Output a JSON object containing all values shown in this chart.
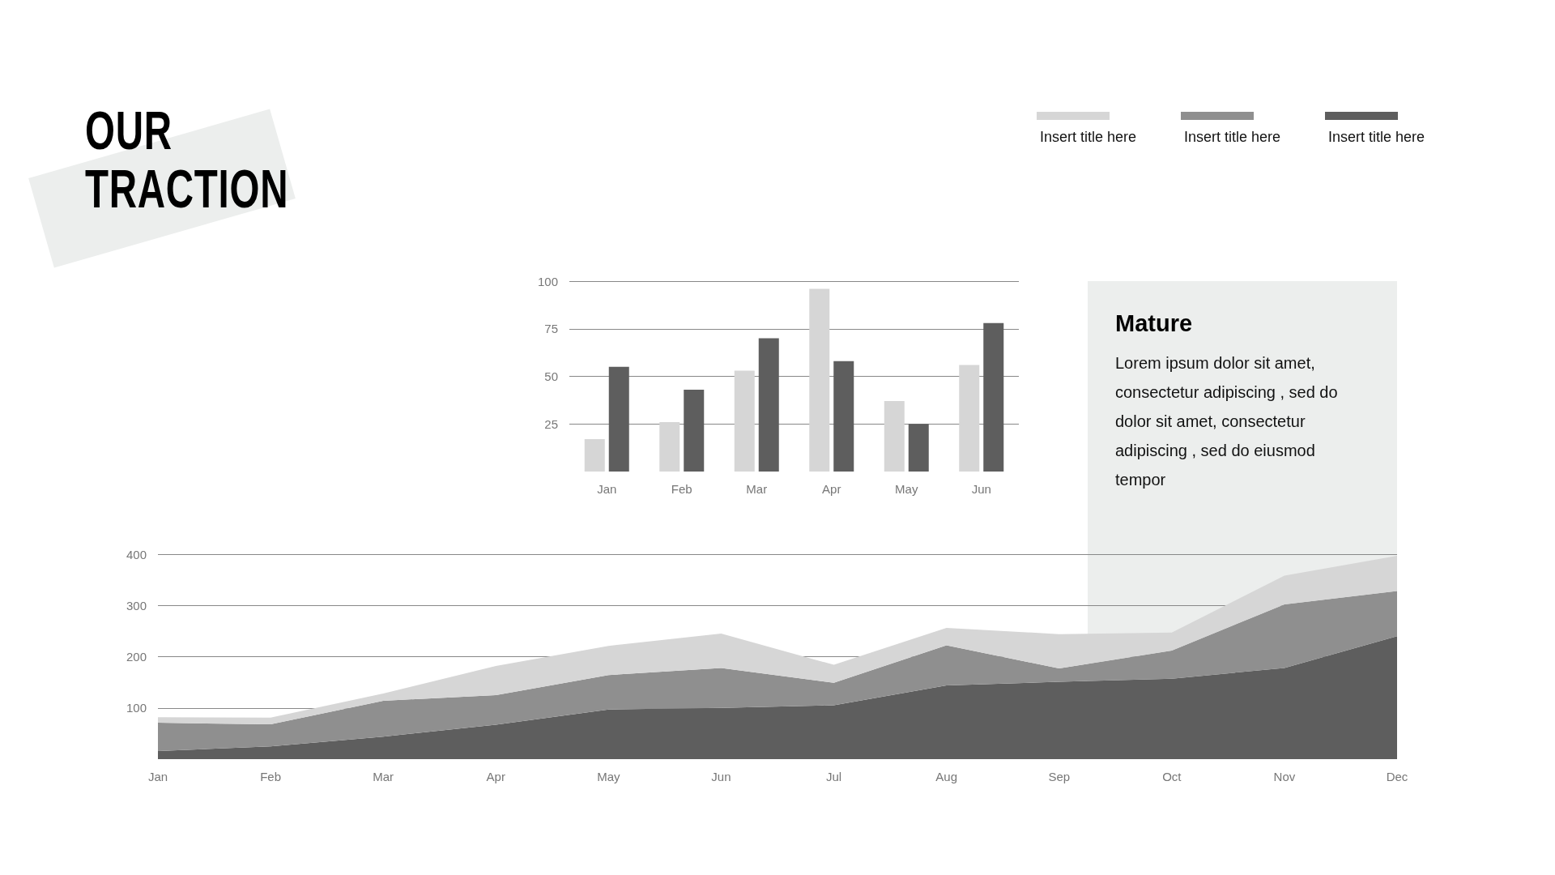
{
  "chart_data": [
    {
      "type": "bar",
      "title": "OUR TRACTION",
      "categories": [
        "Jan",
        "Feb",
        "Mar",
        "Apr",
        "May",
        "Jun"
      ],
      "series": [
        {
          "color": "#d6d6d6",
          "values": [
            17,
            26,
            53,
            96,
            37,
            56
          ]
        },
        {
          "color": "#5e5e5e",
          "values": [
            55,
            43,
            70,
            58,
            25,
            78
          ]
        }
      ],
      "ylim": [
        0,
        100
      ],
      "yticks": [
        25,
        50,
        75,
        100
      ],
      "grid": "y"
    },
    {
      "type": "area",
      "stacked": true,
      "categories": [
        "Jan",
        "Feb",
        "Mar",
        "Apr",
        "May",
        "Jun",
        "Jul",
        "Aug",
        "Sep",
        "Oct",
        "Nov",
        "Dec"
      ],
      "series": [
        {
          "name": "Insert title here",
          "color": "#5e5e5e",
          "values": [
            16,
            25,
            44,
            67,
            97,
            100,
            105,
            144,
            151,
            157,
            178,
            240
          ]
        },
        {
          "name": "Insert title here",
          "color": "#8f8f8f",
          "values": [
            55,
            43,
            70,
            58,
            67,
            78,
            44,
            78,
            26,
            55,
            124,
            88
          ]
        },
        {
          "name": "Insert title here",
          "color": "#d6d6d6",
          "values": [
            11,
            13,
            14,
            57,
            57,
            67,
            35,
            34,
            67,
            35,
            56,
            69
          ]
        }
      ],
      "ylim": [
        0,
        400
      ],
      "yticks": [
        100,
        200,
        300,
        400
      ],
      "grid": "y",
      "legend": "top right"
    },
    {
      "type": "other",
      "title": "Mature",
      "annotations": [
        "Lorem ipsum dolor sit amet, consectetur adipiscing , sed do dolor sit amet, consectetur adipiscing , sed do eiusmod tempor"
      ]
    }
  ]
}
